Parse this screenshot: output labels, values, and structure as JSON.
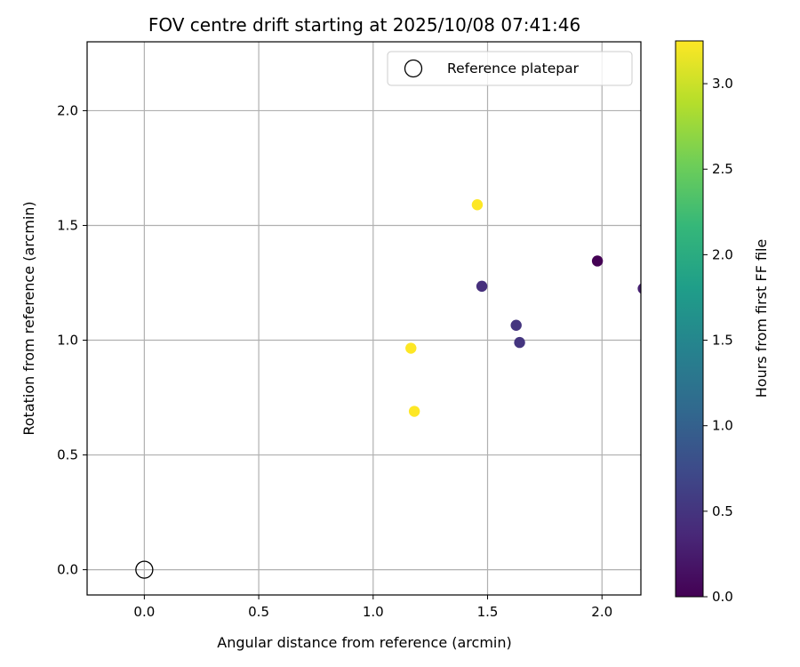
{
  "chart_data": {
    "type": "scatter",
    "title": "FOV centre drift starting at 2025/10/08 07:41:46",
    "xlabel": "Angular distance from reference (arcmin)",
    "ylabel": "Rotation from reference (arcmin)",
    "xlim": [
      -0.25,
      2.17
    ],
    "ylim": [
      -0.11,
      2.3
    ],
    "xticks": [
      0.0,
      0.5,
      1.0,
      1.5,
      2.0
    ],
    "yticks": [
      0.0,
      0.5,
      1.0,
      1.5,
      2.0
    ],
    "xtick_labels": [
      "0.0",
      "0.5",
      "1.0",
      "1.5",
      "2.0"
    ],
    "ytick_labels": [
      "0.0",
      "0.5",
      "1.0",
      "1.5",
      "2.0"
    ],
    "grid": true,
    "reference": {
      "x": 0.0,
      "y": 0.0,
      "label": "Reference platepar"
    },
    "points": [
      {
        "x": 1.98,
        "y": 1.345,
        "hours": 0.0
      },
      {
        "x": 2.18,
        "y": 1.225,
        "hours": 0.3
      },
      {
        "x": 1.475,
        "y": 1.235,
        "hours": 0.45
      },
      {
        "x": 1.625,
        "y": 1.065,
        "hours": 0.5
      },
      {
        "x": 1.64,
        "y": 0.99,
        "hours": 0.5
      },
      {
        "x": 1.455,
        "y": 1.59,
        "hours": 3.25
      },
      {
        "x": 1.165,
        "y": 0.965,
        "hours": 3.25
      },
      {
        "x": 1.18,
        "y": 0.69,
        "hours": 3.25
      }
    ],
    "legend": {
      "entries": [
        "Reference platepar"
      ],
      "placement": "top-right"
    },
    "colorbar": {
      "label": "Hours from first FF file",
      "range": [
        0.0,
        3.25
      ],
      "ticks": [
        0.0,
        0.5,
        1.0,
        1.5,
        2.0,
        2.5,
        3.0
      ],
      "tick_labels": [
        "0.0",
        "0.5",
        "1.0",
        "1.5",
        "2.0",
        "2.5",
        "3.0"
      ],
      "colormap": "viridis"
    }
  },
  "colors": {
    "viridis": [
      "#440154",
      "#482878",
      "#3e4989",
      "#31688e",
      "#26828e",
      "#1f9e89",
      "#35b779",
      "#6ece58",
      "#b5de2b",
      "#fde725"
    ],
    "grid": "#b0b0b0",
    "axis": "#000000"
  }
}
